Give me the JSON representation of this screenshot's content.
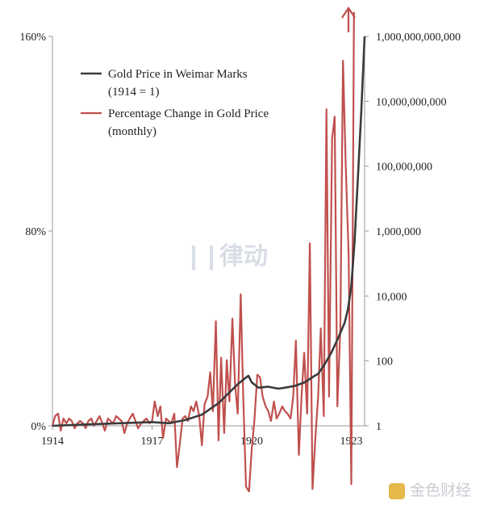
{
  "chart_data": {
    "type": "line",
    "title": "",
    "xlabel": "",
    "ylabel_left": "",
    "ylabel_right": "",
    "x_ticks": [
      "1914",
      "1917",
      "1920",
      "1923"
    ],
    "x_range": [
      1914,
      1923.4
    ],
    "y_left_ticks": [
      "0%",
      "80%",
      "160%"
    ],
    "y_left_range": [
      0,
      160
    ],
    "y_right_scale": "log",
    "y_right_ticks": [
      "1",
      "100",
      "10,000",
      "1,000,000",
      "100,000,000",
      "10,000,000,000",
      "1,000,000,000,000"
    ],
    "y_right_range": [
      1,
      1000000000000
    ],
    "legend": {
      "position": "top-left",
      "entries": [
        {
          "line1": "Gold Price in Weimar Marks",
          "line2": "(1914 = 1)",
          "color": "#3b3b3b"
        },
        {
          "line1": "Percentage Change in Gold Price",
          "line2": "(monthly)",
          "color": "#c0504d"
        }
      ]
    },
    "series": [
      {
        "name": "Gold Price in Weimar Marks (1914 = 1)",
        "axis": "right",
        "color": "#3b3b3b",
        "x": [
          1914.0,
          1915.0,
          1916.0,
          1917.0,
          1917.5,
          1918.0,
          1918.5,
          1919.0,
          1919.3,
          1919.6,
          1919.9,
          1920.0,
          1920.2,
          1920.5,
          1920.8,
          1921.0,
          1921.3,
          1921.6,
          1921.9,
          1922.0,
          1922.2,
          1922.4,
          1922.6,
          1922.8,
          1922.9,
          1923.0,
          1923.1,
          1923.2,
          1923.3,
          1923.4
        ],
        "values": [
          1,
          1.1,
          1.2,
          1.3,
          1.2,
          1.5,
          2.2,
          5,
          10,
          20,
          35,
          22,
          15,
          16,
          14,
          15,
          17,
          22,
          35,
          40,
          80,
          180,
          500,
          1500,
          4000,
          20000,
          500000,
          50000000,
          5000000000,
          1000000000000
        ]
      },
      {
        "name": "Percentage Change in Gold Price (monthly)",
        "axis": "left",
        "color": "#c0504d",
        "x": [
          1914.0,
          1914.08,
          1914.17,
          1914.25,
          1914.33,
          1914.42,
          1914.5,
          1914.58,
          1914.67,
          1914.75,
          1914.83,
          1914.92,
          1915.0,
          1915.08,
          1915.17,
          1915.25,
          1915.33,
          1915.42,
          1915.5,
          1915.58,
          1915.67,
          1915.75,
          1915.83,
          1915.92,
          1916.0,
          1916.08,
          1916.17,
          1916.25,
          1916.33,
          1916.42,
          1916.5,
          1916.58,
          1916.67,
          1916.75,
          1916.83,
          1916.92,
          1917.0,
          1917.08,
          1917.17,
          1917.25,
          1917.33,
          1917.42,
          1917.5,
          1917.58,
          1917.67,
          1917.75,
          1917.83,
          1917.92,
          1918.0,
          1918.08,
          1918.17,
          1918.25,
          1918.33,
          1918.42,
          1918.5,
          1918.58,
          1918.67,
          1918.75,
          1918.83,
          1918.92,
          1919.0,
          1919.08,
          1919.17,
          1919.25,
          1919.33,
          1919.42,
          1919.5,
          1919.58,
          1919.67,
          1919.75,
          1919.83,
          1919.92,
          1920.0,
          1920.08,
          1920.17,
          1920.25,
          1920.33,
          1920.42,
          1920.5,
          1920.58,
          1920.67,
          1920.75,
          1920.83,
          1920.92,
          1921.0,
          1921.08,
          1921.17,
          1921.25,
          1921.33,
          1921.42,
          1921.5,
          1921.58,
          1921.67,
          1921.75,
          1921.83,
          1921.92,
          1922.0,
          1922.08,
          1922.17,
          1922.25,
          1922.33,
          1922.42,
          1922.5,
          1922.58,
          1922.67,
          1922.75,
          1922.83,
          1922.92,
          1923.0,
          1923.08
        ],
        "values": [
          0,
          4,
          5,
          -2,
          3,
          1,
          3,
          2,
          -1,
          1,
          2,
          1,
          -1,
          2,
          3,
          0,
          2,
          4,
          1,
          -2,
          3,
          2,
          1,
          4,
          3,
          2,
          -3,
          1,
          3,
          5,
          2,
          -1,
          1,
          2,
          3,
          1,
          2,
          10,
          4,
          8,
          -5,
          3,
          2,
          1,
          5,
          -17,
          -8,
          3,
          4,
          2,
          8,
          6,
          10,
          4,
          -8,
          9,
          12,
          22,
          6,
          43,
          -6,
          28,
          -3,
          27,
          10,
          44,
          17,
          5,
          54,
          10,
          -25,
          -27,
          -10,
          2,
          21,
          20,
          12,
          8,
          6,
          2,
          10,
          3,
          5,
          8,
          6,
          5,
          3,
          12,
          35,
          -12,
          12,
          30,
          5,
          75,
          -26,
          -4,
          12,
          40,
          4,
          130,
          12,
          118,
          127,
          8,
          40,
          150,
          108,
          70,
          -24,
          170
        ]
      }
    ]
  },
  "watermarks": {
    "center_text": "律动",
    "bottom_right_text": "金色财经"
  }
}
